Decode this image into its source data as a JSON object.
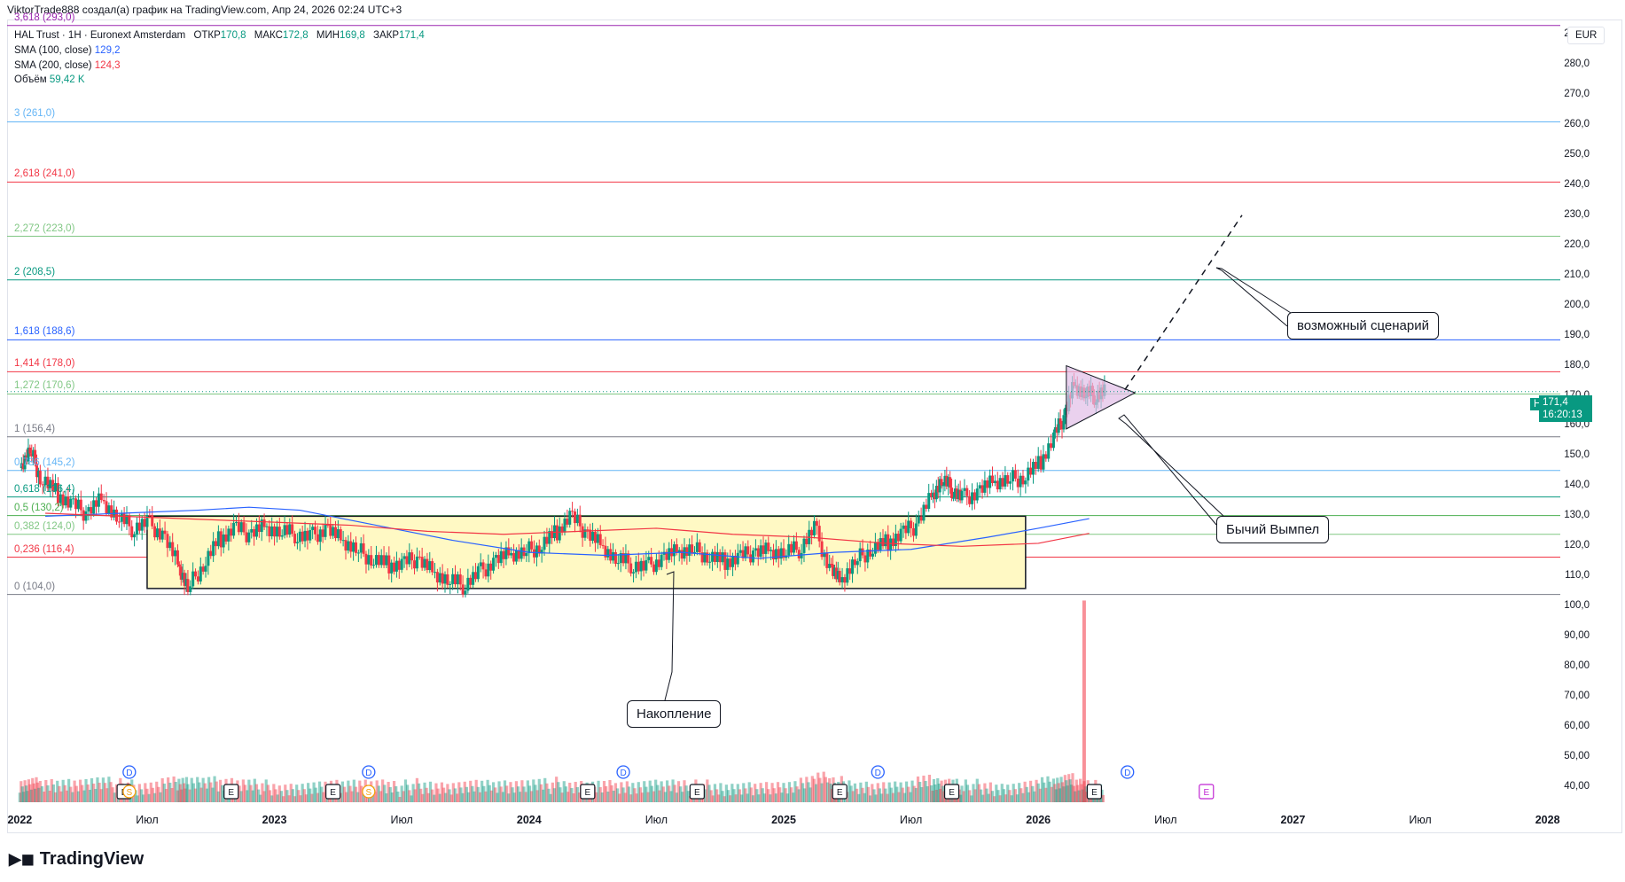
{
  "header": {
    "attribution": "ViktorTrade888 создал(а) график на TradingView.com, Апр 24, 2026 02:24 UTC+3"
  },
  "legend": {
    "symbol": "HAL Trust · 1Н · Euronext Amsterdam",
    "open_label": "ОТКР",
    "open": "170,8",
    "high_label": "МАКС",
    "high": "172,8",
    "low_label": "МИН",
    "low": "169,8",
    "close_label": "ЗАКР",
    "close": "171,4",
    "sma100_label": "SMA (100, close)",
    "sma100": "129,2",
    "sma200_label": "SMA (200, close)",
    "sma200": "124,3",
    "volume_label": "Объём",
    "volume": "59,42 K"
  },
  "currency": "EUR",
  "price_tag": {
    "symbol": "HAL",
    "price": "171,4",
    "countdown": "16:20:13"
  },
  "annotations": {
    "accumulation": "Накопление",
    "pennant": "Бычий Вымпел",
    "scenario": "возможный сценарий"
  },
  "branding": {
    "logo_text": "TradingView"
  },
  "colors": {
    "up": "#089981",
    "down": "#f23645",
    "sma100": "#2962ff",
    "sma200": "#f23645",
    "box_fill": "#fff9c4",
    "pennant_fill": "#e1bee7"
  },
  "chart_data": {
    "type": "candlestick",
    "y_axis": {
      "range": [
        35,
        295
      ],
      "ticks": [
        40,
        50,
        60,
        70,
        80,
        90,
        100,
        110,
        120,
        130,
        140,
        150,
        160,
        170,
        180,
        190,
        200,
        210,
        220,
        230,
        240,
        250,
        260,
        270,
        280,
        290
      ],
      "tick_labels": [
        "40,00",
        "50,00",
        "60,00",
        "70,00",
        "80,00",
        "90,00",
        "100,0",
        "110,0",
        "120,0",
        "130,0",
        "140,0",
        "150,0",
        "160,0",
        "170,0",
        "180,0",
        "190,0",
        "200,0",
        "210,0",
        "220,0",
        "230,0",
        "240,0",
        "250,0",
        "260,0",
        "270,0",
        "280,0",
        "290,0"
      ]
    },
    "x_axis": {
      "range": [
        2021.95,
        2028.05
      ],
      "ticks": [
        {
          "t": 2022.0,
          "label": "2022",
          "year": true
        },
        {
          "t": 2022.5,
          "label": "Июл"
        },
        {
          "t": 2023.0,
          "label": "2023",
          "year": true
        },
        {
          "t": 2023.5,
          "label": "Июл"
        },
        {
          "t": 2024.0,
          "label": "2024",
          "year": true
        },
        {
          "t": 2024.5,
          "label": "Июл"
        },
        {
          "t": 2025.0,
          "label": "2025",
          "year": true
        },
        {
          "t": 2025.5,
          "label": "Июл"
        },
        {
          "t": 2026.0,
          "label": "2026",
          "year": true
        },
        {
          "t": 2026.5,
          "label": "Июл"
        },
        {
          "t": 2027.0,
          "label": "2027",
          "year": true
        },
        {
          "t": 2027.5,
          "label": "Июл"
        },
        {
          "t": 2028.0,
          "label": "2028",
          "year": true
        }
      ]
    },
    "fib_levels": [
      {
        "label": "0 (104,0)",
        "value": 104.0,
        "color": "#787b86"
      },
      {
        "label": "0,236 (116,4)",
        "value": 116.4,
        "color": "#f23645"
      },
      {
        "label": "0,382 (124,0)",
        "value": 124.0,
        "color": "#81c784"
      },
      {
        "label": "0,5 (130,2)",
        "value": 130.2,
        "color": "#4caf50"
      },
      {
        "label": "0,618 (136,4)",
        "value": 136.4,
        "color": "#089981"
      },
      {
        "label": "0,786 (145,2)",
        "value": 145.2,
        "color": "#64b5f6"
      },
      {
        "label": "1 (156,4)",
        "value": 156.4,
        "color": "#787b86"
      },
      {
        "label": "1,272 (170,6)",
        "value": 170.6,
        "color": "#81c784"
      },
      {
        "label": "1,414 (178,0)",
        "value": 178.0,
        "color": "#f23645"
      },
      {
        "label": "1,618 (188,6)",
        "value": 188.6,
        "color": "#2962ff"
      },
      {
        "label": "2 (208,5)",
        "value": 208.5,
        "color": "#089981"
      },
      {
        "label": "2,272 (223,0)",
        "value": 223.0,
        "color": "#81c784"
      },
      {
        "label": "2,618 (241,0)",
        "value": 241.0,
        "color": "#f23645"
      },
      {
        "label": "3 (261,0)",
        "value": 261.0,
        "color": "#64b5f6"
      },
      {
        "label": "3,618 (293,0)",
        "value": 293.0,
        "color": "#9c27b0"
      }
    ],
    "price_path": [
      [
        2022.0,
        146
      ],
      [
        2022.04,
        152
      ],
      [
        2022.08,
        143
      ],
      [
        2022.14,
        138
      ],
      [
        2022.2,
        134
      ],
      [
        2022.26,
        131
      ],
      [
        2022.32,
        136
      ],
      [
        2022.38,
        130
      ],
      [
        2022.44,
        126
      ],
      [
        2022.5,
        128
      ],
      [
        2022.56,
        124
      ],
      [
        2022.62,
        114
      ],
      [
        2022.66,
        106
      ],
      [
        2022.72,
        114
      ],
      [
        2022.78,
        122
      ],
      [
        2022.84,
        126
      ],
      [
        2022.9,
        124
      ],
      [
        2022.96,
        127
      ],
      [
        2023.02,
        125
      ],
      [
        2023.08,
        124
      ],
      [
        2023.14,
        123
      ],
      [
        2023.2,
        126
      ],
      [
        2023.26,
        122
      ],
      [
        2023.32,
        119
      ],
      [
        2023.38,
        116
      ],
      [
        2023.44,
        114
      ],
      [
        2023.5,
        114
      ],
      [
        2023.56,
        116
      ],
      [
        2023.62,
        112
      ],
      [
        2023.68,
        109
      ],
      [
        2023.74,
        107
      ],
      [
        2023.8,
        111
      ],
      [
        2023.86,
        115
      ],
      [
        2023.92,
        117
      ],
      [
        2023.98,
        118
      ],
      [
        2024.04,
        120
      ],
      [
        2024.1,
        124
      ],
      [
        2024.16,
        130
      ],
      [
        2024.22,
        125
      ],
      [
        2024.28,
        121
      ],
      [
        2024.34,
        116
      ],
      [
        2024.4,
        114
      ],
      [
        2024.46,
        113
      ],
      [
        2024.52,
        116
      ],
      [
        2024.58,
        118
      ],
      [
        2024.64,
        119
      ],
      [
        2024.7,
        117
      ],
      [
        2024.76,
        115
      ],
      [
        2024.82,
        116
      ],
      [
        2024.88,
        118
      ],
      [
        2024.94,
        119
      ],
      [
        2025.0,
        118
      ],
      [
        2025.06,
        119
      ],
      [
        2025.12,
        126
      ],
      [
        2025.18,
        113
      ],
      [
        2025.22,
        108
      ],
      [
        2025.28,
        115
      ],
      [
        2025.34,
        119
      ],
      [
        2025.4,
        121
      ],
      [
        2025.46,
        124
      ],
      [
        2025.52,
        127
      ],
      [
        2025.58,
        137
      ],
      [
        2025.62,
        142
      ],
      [
        2025.66,
        139
      ],
      [
        2025.7,
        136
      ],
      [
        2025.76,
        138
      ],
      [
        2025.82,
        141
      ],
      [
        2025.88,
        142
      ],
      [
        2025.94,
        143
      ],
      [
        2026.0,
        147
      ],
      [
        2026.06,
        156
      ],
      [
        2026.1,
        163
      ],
      [
        2026.14,
        174
      ],
      [
        2026.18,
        171
      ],
      [
        2026.22,
        170
      ],
      [
        2026.26,
        171.4
      ]
    ],
    "sma100": [
      [
        2022.1,
        130
      ],
      [
        2022.4,
        131
      ],
      [
        2022.7,
        132
      ],
      [
        2022.9,
        133
      ],
      [
        2023.1,
        132
      ],
      [
        2023.4,
        127
      ],
      [
        2023.7,
        122
      ],
      [
        2024.0,
        118
      ],
      [
        2024.3,
        117
      ],
      [
        2024.6,
        118
      ],
      [
        2024.9,
        116
      ],
      [
        2025.2,
        118
      ],
      [
        2025.5,
        119
      ],
      [
        2025.8,
        123
      ],
      [
        2026.0,
        126
      ],
      [
        2026.2,
        129.2
      ]
    ],
    "sma200": [
      [
        2022.1,
        131
      ],
      [
        2022.4,
        130
      ],
      [
        2022.7,
        129
      ],
      [
        2023.0,
        128
      ],
      [
        2023.3,
        127
      ],
      [
        2023.6,
        125
      ],
      [
        2023.9,
        124
      ],
      [
        2024.2,
        125
      ],
      [
        2024.5,
        126
      ],
      [
        2024.8,
        124
      ],
      [
        2025.1,
        123
      ],
      [
        2025.4,
        121
      ],
      [
        2025.7,
        120
      ],
      [
        2026.0,
        121
      ],
      [
        2026.2,
        124.3
      ]
    ],
    "accumulation_box": {
      "t0": 2022.5,
      "t1": 2025.95,
      "p0": 106,
      "p1": 130
    },
    "pennant": {
      "t0": 2026.11,
      "t1": 2026.38,
      "high": 180,
      "low": 159,
      "apex": 171
    },
    "scenario_path": [
      [
        2026.34,
        172
      ],
      [
        2026.8,
        230
      ]
    ],
    "volume_spike": {
      "t": 2026.18,
      "height_value": 102
    },
    "events": [
      {
        "t": 2022.41,
        "type": "E"
      },
      {
        "t": 2022.43,
        "type": "S"
      },
      {
        "t": 2022.43,
        "type": "D"
      },
      {
        "t": 2022.83,
        "type": "E"
      },
      {
        "t": 2023.23,
        "type": "E"
      },
      {
        "t": 2023.37,
        "type": "S"
      },
      {
        "t": 2023.37,
        "type": "D"
      },
      {
        "t": 2024.23,
        "type": "E"
      },
      {
        "t": 2024.37,
        "type": "D"
      },
      {
        "t": 2024.66,
        "type": "E"
      },
      {
        "t": 2025.22,
        "type": "E"
      },
      {
        "t": 2025.37,
        "type": "D"
      },
      {
        "t": 2025.66,
        "type": "E"
      },
      {
        "t": 2026.22,
        "type": "E"
      },
      {
        "t": 2026.35,
        "type": "D"
      },
      {
        "t": 2026.66,
        "type": "E-future"
      }
    ]
  }
}
